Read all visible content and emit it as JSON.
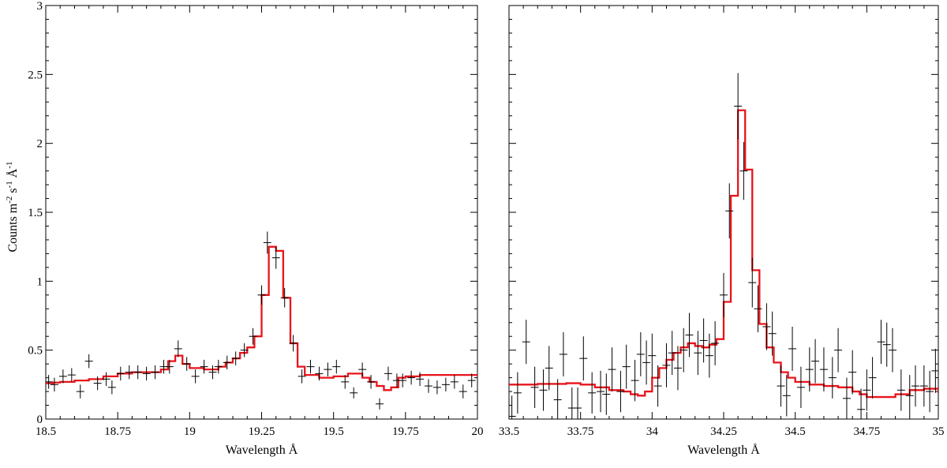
{
  "colors": {
    "model": "#e8141b",
    "data": "#000000",
    "axis": "#000000"
  },
  "y_axis": {
    "label_main": "Counts m",
    "sup1": "-2",
    "mid1": " s",
    "sup2": "-1",
    "mid2": " Å",
    "sup3": "-1",
    "ylim": [
      0,
      3
    ],
    "ticks": [
      "0",
      "0.5",
      "1",
      "1.5",
      "2",
      "2.5",
      "3"
    ]
  },
  "chart_data": [
    {
      "type": "line",
      "xlabel": "Wavelength Å",
      "xlim": [
        18.5,
        20
      ],
      "ylim": [
        0,
        3
      ],
      "xticks": [
        "18.5",
        "18.75",
        "19",
        "19.25",
        "19.5",
        "19.75",
        "20"
      ],
      "series": [
        {
          "style": "step",
          "color": "#e8141b",
          "points": [
            [
              18.5,
              0.26
            ],
            [
              18.525,
              0.265
            ],
            [
              18.55,
              0.27
            ],
            [
              18.6,
              0.28
            ],
            [
              18.65,
              0.29
            ],
            [
              18.7,
              0.31
            ],
            [
              18.75,
              0.33
            ],
            [
              18.8,
              0.34
            ],
            [
              18.85,
              0.34
            ],
            [
              18.9,
              0.36
            ],
            [
              18.925,
              0.42
            ],
            [
              18.95,
              0.46
            ],
            [
              18.975,
              0.4
            ],
            [
              19.0,
              0.37
            ],
            [
              19.05,
              0.36
            ],
            [
              19.1,
              0.38
            ],
            [
              19.125,
              0.41
            ],
            [
              19.15,
              0.44
            ],
            [
              19.175,
              0.48
            ],
            [
              19.2,
              0.52
            ],
            [
              19.225,
              0.6
            ],
            [
              19.25,
              0.9
            ],
            [
              19.275,
              1.25
            ],
            [
              19.3,
              1.22
            ],
            [
              19.325,
              0.88
            ],
            [
              19.35,
              0.55
            ],
            [
              19.375,
              0.38
            ],
            [
              19.4,
              0.32
            ],
            [
              19.45,
              0.3
            ],
            [
              19.5,
              0.31
            ],
            [
              19.55,
              0.33
            ],
            [
              19.6,
              0.3
            ],
            [
              19.625,
              0.27
            ],
            [
              19.65,
              0.24
            ],
            [
              19.675,
              0.21
            ],
            [
              19.7,
              0.23
            ],
            [
              19.725,
              0.3
            ],
            [
              19.75,
              0.31
            ],
            [
              19.8,
              0.32
            ],
            [
              19.9,
              0.32
            ],
            [
              20.0,
              0.31
            ]
          ]
        },
        {
          "style": "errorbar",
          "color": "#000000",
          "points": [
            [
              18.51,
              0.27,
              0.05
            ],
            [
              18.53,
              0.25,
              0.05
            ],
            [
              18.56,
              0.31,
              0.05
            ],
            [
              18.59,
              0.32,
              0.05
            ],
            [
              18.62,
              0.2,
              0.05
            ],
            [
              18.65,
              0.42,
              0.05
            ],
            [
              18.68,
              0.26,
              0.05
            ],
            [
              18.71,
              0.29,
              0.05
            ],
            [
              18.73,
              0.23,
              0.05
            ],
            [
              18.76,
              0.33,
              0.05
            ],
            [
              18.79,
              0.34,
              0.05
            ],
            [
              18.82,
              0.34,
              0.05
            ],
            [
              18.85,
              0.33,
              0.05
            ],
            [
              18.88,
              0.34,
              0.05
            ],
            [
              18.91,
              0.38,
              0.05
            ],
            [
              18.93,
              0.38,
              0.05
            ],
            [
              18.96,
              0.51,
              0.06
            ],
            [
              18.99,
              0.4,
              0.05
            ],
            [
              19.02,
              0.31,
              0.05
            ],
            [
              19.05,
              0.38,
              0.05
            ],
            [
              19.08,
              0.34,
              0.05
            ],
            [
              19.1,
              0.38,
              0.05
            ],
            [
              19.13,
              0.41,
              0.05
            ],
            [
              19.16,
              0.44,
              0.05
            ],
            [
              19.19,
              0.5,
              0.05
            ],
            [
              19.22,
              0.6,
              0.06
            ],
            [
              19.25,
              0.9,
              0.07
            ],
            [
              19.27,
              1.28,
              0.08
            ],
            [
              19.3,
              1.17,
              0.08
            ],
            [
              19.33,
              0.88,
              0.07
            ],
            [
              19.36,
              0.55,
              0.06
            ],
            [
              19.39,
              0.31,
              0.05
            ],
            [
              19.42,
              0.38,
              0.05
            ],
            [
              19.45,
              0.33,
              0.05
            ],
            [
              19.48,
              0.36,
              0.05
            ],
            [
              19.51,
              0.38,
              0.05
            ],
            [
              19.54,
              0.27,
              0.05
            ],
            [
              19.57,
              0.19,
              0.04
            ],
            [
              19.6,
              0.36,
              0.05
            ],
            [
              19.63,
              0.27,
              0.05
            ],
            [
              19.66,
              0.11,
              0.04
            ],
            [
              19.69,
              0.33,
              0.05
            ],
            [
              19.72,
              0.28,
              0.05
            ],
            [
              19.74,
              0.28,
              0.05
            ],
            [
              19.77,
              0.3,
              0.05
            ],
            [
              19.8,
              0.29,
              0.05
            ],
            [
              19.83,
              0.24,
              0.05
            ],
            [
              19.86,
              0.23,
              0.05
            ],
            [
              19.89,
              0.25,
              0.05
            ],
            [
              19.92,
              0.27,
              0.05
            ],
            [
              19.95,
              0.2,
              0.05
            ],
            [
              19.98,
              0.28,
              0.05
            ]
          ]
        }
      ]
    },
    {
      "type": "line",
      "xlabel": "Wavelength Å",
      "xlim": [
        33.5,
        35
      ],
      "ylim": [
        0,
        3
      ],
      "xticks": [
        "33.5",
        "33.75",
        "34",
        "34.25",
        "34.5",
        "34.75",
        "35"
      ],
      "series": [
        {
          "style": "step",
          "color": "#e8141b",
          "points": [
            [
              33.5,
              0.25
            ],
            [
              33.6,
              0.255
            ],
            [
              33.7,
              0.26
            ],
            [
              33.75,
              0.25
            ],
            [
              33.8,
              0.23
            ],
            [
              33.85,
              0.21
            ],
            [
              33.9,
              0.2
            ],
            [
              33.925,
              0.18
            ],
            [
              33.95,
              0.17
            ],
            [
              33.975,
              0.2
            ],
            [
              34.0,
              0.3
            ],
            [
              34.025,
              0.37
            ],
            [
              34.05,
              0.43
            ],
            [
              34.075,
              0.48
            ],
            [
              34.1,
              0.52
            ],
            [
              34.125,
              0.55
            ],
            [
              34.15,
              0.53
            ],
            [
              34.175,
              0.52
            ],
            [
              34.2,
              0.54
            ],
            [
              34.225,
              0.58
            ],
            [
              34.25,
              0.85
            ],
            [
              34.275,
              1.62
            ],
            [
              34.3,
              2.24
            ],
            [
              34.325,
              1.81
            ],
            [
              34.35,
              1.08
            ],
            [
              34.375,
              0.69
            ],
            [
              34.4,
              0.52
            ],
            [
              34.425,
              0.41
            ],
            [
              34.45,
              0.34
            ],
            [
              34.475,
              0.3
            ],
            [
              34.5,
              0.27
            ],
            [
              34.55,
              0.25
            ],
            [
              34.6,
              0.24
            ],
            [
              34.65,
              0.23
            ],
            [
              34.7,
              0.2
            ],
            [
              34.725,
              0.18
            ],
            [
              34.75,
              0.16
            ],
            [
              34.8,
              0.16
            ],
            [
              34.85,
              0.18
            ],
            [
              34.9,
              0.21
            ],
            [
              34.95,
              0.22
            ],
            [
              35.0,
              0.19
            ]
          ]
        },
        {
          "style": "errorbar",
          "color": "#000000",
          "points": [
            [
              33.51,
              0.02,
              0.15
            ],
            [
              33.53,
              0.19,
              0.15
            ],
            [
              33.56,
              0.56,
              0.16
            ],
            [
              33.59,
              0.23,
              0.15
            ],
            [
              33.62,
              0.21,
              0.15
            ],
            [
              33.64,
              0.37,
              0.16
            ],
            [
              33.67,
              0.14,
              0.15
            ],
            [
              33.69,
              0.47,
              0.16
            ],
            [
              33.72,
              0.08,
              0.15
            ],
            [
              33.74,
              0.08,
              0.15
            ],
            [
              33.76,
              0.44,
              0.16
            ],
            [
              33.79,
              0.19,
              0.15
            ],
            [
              33.82,
              0.2,
              0.15
            ],
            [
              33.84,
              0.18,
              0.15
            ],
            [
              33.86,
              0.36,
              0.16
            ],
            [
              33.89,
              0.2,
              0.15
            ],
            [
              33.91,
              0.38,
              0.16
            ],
            [
              33.94,
              0.28,
              0.15
            ],
            [
              33.96,
              0.47,
              0.16
            ],
            [
              33.98,
              0.41,
              0.16
            ],
            [
              34.0,
              0.46,
              0.16
            ],
            [
              34.02,
              0.24,
              0.15
            ],
            [
              34.05,
              0.39,
              0.16
            ],
            [
              34.07,
              0.48,
              0.16
            ],
            [
              34.09,
              0.37,
              0.16
            ],
            [
              34.11,
              0.5,
              0.16
            ],
            [
              34.13,
              0.61,
              0.16
            ],
            [
              34.16,
              0.48,
              0.16
            ],
            [
              34.18,
              0.57,
              0.16
            ],
            [
              34.2,
              0.46,
              0.16
            ],
            [
              34.22,
              0.55,
              0.16
            ],
            [
              34.25,
              0.9,
              0.16
            ],
            [
              34.27,
              1.51,
              0.2
            ],
            [
              34.3,
              2.27,
              0.24
            ],
            [
              34.32,
              1.8,
              0.21
            ],
            [
              34.35,
              0.99,
              0.18
            ],
            [
              34.37,
              0.8,
              0.17
            ],
            [
              34.4,
              0.67,
              0.17
            ],
            [
              34.42,
              0.62,
              0.16
            ],
            [
              34.45,
              0.24,
              0.15
            ],
            [
              34.47,
              0.17,
              0.15
            ],
            [
              34.49,
              0.51,
              0.16
            ],
            [
              34.52,
              0.23,
              0.15
            ],
            [
              34.55,
              0.36,
              0.16
            ],
            [
              34.57,
              0.42,
              0.16
            ],
            [
              34.6,
              0.36,
              0.16
            ],
            [
              34.63,
              0.3,
              0.15
            ],
            [
              34.65,
              0.5,
              0.16
            ],
            [
              34.68,
              0.15,
              0.15
            ],
            [
              34.7,
              0.34,
              0.16
            ],
            [
              34.73,
              0.07,
              0.15
            ],
            [
              34.75,
              0.21,
              0.15
            ],
            [
              34.77,
              0.3,
              0.15
            ],
            [
              34.8,
              0.56,
              0.16
            ],
            [
              34.82,
              0.54,
              0.16
            ],
            [
              34.84,
              0.5,
              0.16
            ],
            [
              34.87,
              0.21,
              0.15
            ],
            [
              34.9,
              0.17,
              0.15
            ],
            [
              34.92,
              0.24,
              0.15
            ],
            [
              34.95,
              0.24,
              0.15
            ],
            [
              34.97,
              0.2,
              0.15
            ],
            [
              34.99,
              0.35,
              0.16
            ]
          ]
        }
      ]
    }
  ]
}
